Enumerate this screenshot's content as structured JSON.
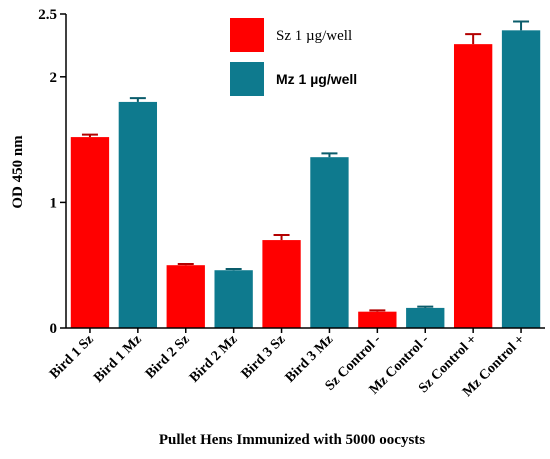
{
  "chart_data": {
    "type": "bar",
    "xlabel": "Pullet Hens Immunized with 5000 oocysts",
    "ylabel": "OD 450 nm",
    "ylim": [
      0,
      2.5
    ],
    "yticks": [
      0,
      1,
      2,
      2.5
    ],
    "ytick_labels": [
      "0",
      "1",
      "2",
      "2.5"
    ],
    "grid": false,
    "legend_placement": "top-center",
    "categories": [
      "Bird 1 Sz",
      "Bird 1 Mz",
      "Bird 2 Sz",
      "Bird 2 Mz",
      "Bird 3 Sz",
      "Bird 3 Mz",
      "Sz Control -",
      "Mz Control -",
      "Sz Control +",
      "Mz Control +"
    ],
    "values": [
      1.52,
      1.8,
      0.5,
      0.46,
      0.7,
      1.36,
      0.13,
      0.16,
      2.26,
      2.37
    ],
    "errors": [
      0.02,
      0.03,
      0.01,
      0.01,
      0.04,
      0.03,
      0.01,
      0.01,
      0.08,
      0.07
    ],
    "series": [
      {
        "name": "Sz 1 µg/well",
        "indices": [
          0,
          2,
          4,
          6,
          8
        ],
        "color": "#ff0000"
      },
      {
        "name": "Mz 1 µg/well",
        "indices": [
          1,
          3,
          5,
          7,
          9
        ],
        "color": "#0e7a8e"
      }
    ]
  }
}
